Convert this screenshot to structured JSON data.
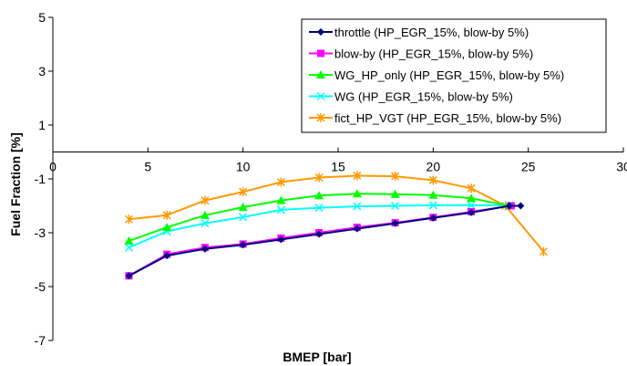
{
  "chart_data": {
    "type": "line",
    "title": "",
    "xlabel": "BMEP [bar]",
    "ylabel": "Fuel Fraction [%]",
    "xlim": [
      0,
      30
    ],
    "ylim": [
      -7,
      5
    ],
    "x_ticks": [
      0,
      5,
      10,
      15,
      20,
      25,
      30
    ],
    "y_ticks": [
      5,
      3,
      1,
      -1,
      -3,
      -5,
      -7
    ],
    "grid": false,
    "legend_position": "top-right",
    "series": [
      {
        "name": "throttle (HP_EGR_15%, blow-by 5%)",
        "color": "#000080",
        "marker": "diamond",
        "points": [
          [
            4,
            -4.6
          ],
          [
            6,
            -3.85
          ],
          [
            8,
            -3.6
          ],
          [
            10,
            -3.45
          ],
          [
            12,
            -3.25
          ],
          [
            14,
            -3.05
          ],
          [
            16,
            -2.85
          ],
          [
            18,
            -2.65
          ],
          [
            20,
            -2.45
          ],
          [
            22,
            -2.25
          ],
          [
            24,
            -2.0
          ],
          [
            24.6,
            -2.0
          ]
        ]
      },
      {
        "name": "blow-by (HP_EGR_15%, blow-by 5%)",
        "color": "#ff00ff",
        "marker": "square",
        "points": [
          [
            4,
            -4.6
          ],
          [
            6,
            -3.8
          ],
          [
            8,
            -3.55
          ],
          [
            10,
            -3.42
          ],
          [
            12,
            -3.2
          ],
          [
            14,
            -3.0
          ],
          [
            16,
            -2.8
          ],
          [
            18,
            -2.63
          ],
          [
            20,
            -2.43
          ],
          [
            22,
            -2.22
          ],
          [
            24.1,
            -2.0
          ]
        ]
      },
      {
        "name": "WG_HP_only (HP_EGR_15%, blow-by 5%)",
        "color": "#00ff00",
        "marker": "triangle",
        "points": [
          [
            4,
            -3.3
          ],
          [
            6,
            -2.8
          ],
          [
            8,
            -2.35
          ],
          [
            10,
            -2.05
          ],
          [
            12,
            -1.8
          ],
          [
            14,
            -1.62
          ],
          [
            16,
            -1.55
          ],
          [
            18,
            -1.57
          ],
          [
            20,
            -1.6
          ],
          [
            22,
            -1.72
          ],
          [
            24,
            -2.0
          ]
        ]
      },
      {
        "name": "WG (HP_EGR_15%, blow-by 5%)",
        "color": "#00ffff",
        "marker": "x",
        "points": [
          [
            4,
            -3.55
          ],
          [
            6,
            -2.95
          ],
          [
            8,
            -2.65
          ],
          [
            10,
            -2.42
          ],
          [
            12,
            -2.15
          ],
          [
            14,
            -2.07
          ],
          [
            16,
            -2.02
          ],
          [
            18,
            -2.0
          ],
          [
            20,
            -1.98
          ],
          [
            22,
            -1.98
          ],
          [
            24,
            -1.98
          ]
        ]
      },
      {
        "name": "fict_HP_VGT (HP_EGR_15%, blow-by 5%)",
        "color": "#ff9900",
        "marker": "asterisk",
        "points": [
          [
            4,
            -2.5
          ],
          [
            6,
            -2.35
          ],
          [
            8,
            -1.8
          ],
          [
            10,
            -1.48
          ],
          [
            12,
            -1.12
          ],
          [
            14,
            -0.95
          ],
          [
            16,
            -0.88
          ],
          [
            18,
            -0.9
          ],
          [
            20,
            -1.05
          ],
          [
            22,
            -1.35
          ],
          [
            23.8,
            -2.0
          ],
          [
            25.8,
            -3.7
          ]
        ]
      }
    ]
  }
}
